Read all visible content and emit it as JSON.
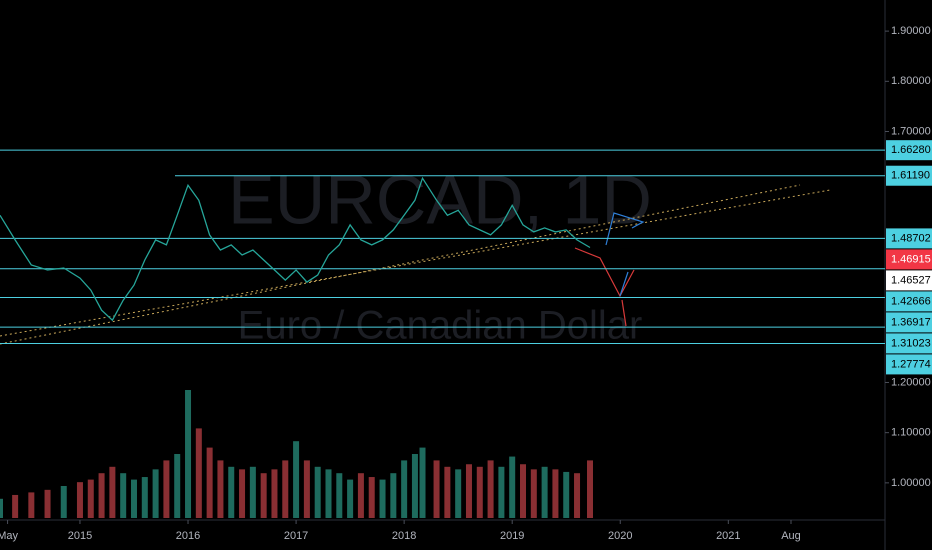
{
  "chart_data": [
    {
      "type": "line",
      "title": "EURCAD, 1D",
      "subtitle": "Euro / Canadian Dollar",
      "x": [
        2014.26,
        2014.4,
        2014.55,
        2014.7,
        2014.85,
        2015.0,
        2015.1,
        2015.2,
        2015.3,
        2015.4,
        2015.5,
        2015.6,
        2015.7,
        2015.8,
        2015.9,
        2016.0,
        2016.1,
        2016.2,
        2016.3,
        2016.4,
        2016.5,
        2016.6,
        2016.7,
        2016.8,
        2016.9,
        2017.0,
        2017.1,
        2017.2,
        2017.3,
        2017.4,
        2017.5,
        2017.6,
        2017.7,
        2017.8,
        2017.9,
        2018.0,
        2018.1,
        2018.17,
        2018.3,
        2018.4,
        2018.5,
        2018.6,
        2018.7,
        2018.8,
        2018.9,
        2019.0,
        2019.1,
        2019.2,
        2019.3,
        2019.4,
        2019.5,
        2019.6,
        2019.72
      ],
      "series": [
        {
          "type": "line",
          "color": "#26a69a",
          "values": [
            1.533,
            1.484,
            1.434,
            1.424,
            1.428,
            1.408,
            1.384,
            1.344,
            1.324,
            1.364,
            1.394,
            1.444,
            1.484,
            1.474,
            1.533,
            1.593,
            1.563,
            1.494,
            1.464,
            1.474,
            1.454,
            1.464,
            1.444,
            1.424,
            1.404,
            1.424,
            1.4,
            1.414,
            1.454,
            1.474,
            1.514,
            1.484,
            1.474,
            1.484,
            1.504,
            1.533,
            1.563,
            1.607,
            1.563,
            1.533,
            1.543,
            1.514,
            1.504,
            1.494,
            1.514,
            1.553,
            1.514,
            1.5,
            1.508,
            1.5,
            1.504,
            1.484,
            1.469
          ]
        },
        {
          "type": "bar",
          "axis": "y2",
          "up_color": "#1e6b5e",
          "down_color": "#8a2f33",
          "values": [
            15,
            18,
            20,
            22,
            25,
            28,
            30,
            35,
            40,
            35,
            30,
            32,
            38,
            45,
            50,
            100,
            70,
            55,
            45,
            40,
            38,
            40,
            35,
            38,
            45,
            60,
            45,
            40,
            38,
            35,
            30,
            35,
            32,
            30,
            35,
            45,
            50,
            55,
            45,
            40,
            38,
            42,
            40,
            45,
            40,
            48,
            42,
            38,
            40,
            38,
            36,
            35,
            45
          ]
        }
      ],
      "xlim": [
        2014.26,
        2022.45
      ],
      "xticks": [
        {
          "value": 2014.33,
          "label": "May"
        },
        2015,
        2016,
        2017,
        2018,
        2019,
        2020,
        2021,
        {
          "value": 2021.58,
          "label": "Aug"
        }
      ],
      "ylim": [
        0.926,
        1.962
      ],
      "yticks": [
        {
          "value": 1.9,
          "label": "1.90000"
        },
        {
          "value": 1.8,
          "label": "1.80000"
        },
        {
          "value": 1.7,
          "label": "1.70000"
        },
        {
          "value": 1.2,
          "label": "1.20000"
        },
        {
          "value": 1.1,
          "label": "1.10000"
        },
        {
          "value": 1.0,
          "label": "1.00000"
        }
      ],
      "y2lim": [
        0,
        100
      ],
      "levels": [
        {
          "value": 1.6628,
          "label": "1.66280"
        },
        {
          "value": 1.6119,
          "label": "1.61190"
        },
        {
          "value": 1.48702,
          "label": "1.48702"
        },
        {
          "value": 1.42666,
          "label": "1.42666"
        },
        {
          "value": 1.36917,
          "label": "1.36917"
        },
        {
          "value": 1.31023,
          "label": "1.31023"
        },
        {
          "value": 1.27774,
          "label": "1.27774"
        }
      ],
      "level_color": "#4dd0e1",
      "last_price": {
        "value": 1.46915,
        "label": "1.46915",
        "color": "#f23645"
      },
      "price_marker": {
        "value": 1.46527,
        "label": "1.46527",
        "color": "#ffffff"
      },
      "grid": false
    }
  ]
}
